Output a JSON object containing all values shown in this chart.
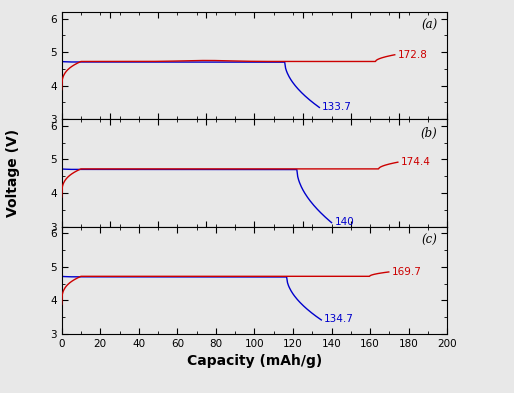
{
  "panels": [
    {
      "label": "(a)",
      "charge_end_x": 172.8,
      "discharge_end_x": 133.7,
      "charge_label": "172.8",
      "discharge_label": "133.7",
      "charge_drop_to": 3.35,
      "discharge_drop_to": 3.35,
      "charge_final_y": 4.92,
      "discharge_final_y": 3.35
    },
    {
      "label": "(b)",
      "charge_end_x": 174.4,
      "discharge_end_x": 140.0,
      "charge_label": "174.4",
      "discharge_label": "140",
      "charge_final_y": 4.92,
      "discharge_final_y": 3.12
    },
    {
      "label": "(c)",
      "charge_end_x": 169.7,
      "discharge_end_x": 134.7,
      "charge_label": "169.7",
      "discharge_label": "134.7",
      "charge_final_y": 4.85,
      "discharge_final_y": 3.42
    }
  ],
  "xlim": [
    0,
    200
  ],
  "ylim": [
    3.0,
    6.2
  ],
  "yticks": [
    3,
    4,
    5,
    6
  ],
  "xticks": [
    0,
    20,
    40,
    60,
    80,
    100,
    120,
    140,
    160,
    180,
    200
  ],
  "xlabel": "Capacity (mAh/g)",
  "ylabel": "Voltage (V)",
  "charge_color": "#cc0000",
  "discharge_color": "#0000cc",
  "figsize": [
    5.14,
    3.93
  ],
  "dpi": 100
}
